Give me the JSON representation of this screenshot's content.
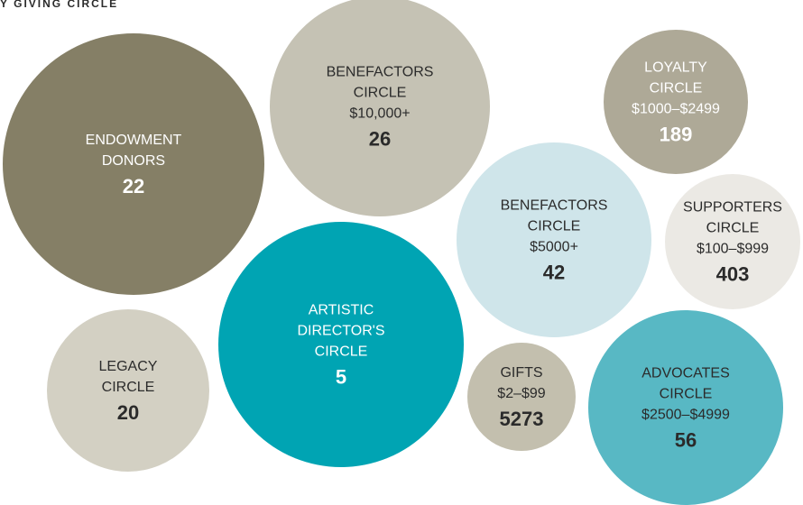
{
  "title": "Y GIVING CIRCLE",
  "nodes": [
    {
      "lines": [
        "ENDOWMENT",
        "DONORS"
      ],
      "count": 22
    },
    {
      "lines": [
        "BENEFACTORS",
        "CIRCLE",
        "$10,000+"
      ],
      "count": 26
    },
    {
      "lines": [
        "LOYALTY",
        "CIRCLE",
        "$1000–$2499"
      ],
      "count": 189
    },
    {
      "lines": [
        "BENEFACTORS",
        "CIRCLE",
        "$5000+"
      ],
      "count": 42
    },
    {
      "lines": [
        "SUPPORTERS",
        "CIRCLE",
        "$100–$999"
      ],
      "count": 403
    },
    {
      "lines": [
        "ARTISTIC",
        "DIRECTOR'S",
        "CIRCLE"
      ],
      "count": 5
    },
    {
      "lines": [
        "LEGACY",
        "CIRCLE"
      ],
      "count": 20
    },
    {
      "lines": [
        "GIFTS",
        "$2–$99"
      ],
      "count": 5273
    },
    {
      "lines": [
        "ADVOCATES",
        "CIRCLE",
        "$2500–$4999"
      ],
      "count": 56
    }
  ]
}
